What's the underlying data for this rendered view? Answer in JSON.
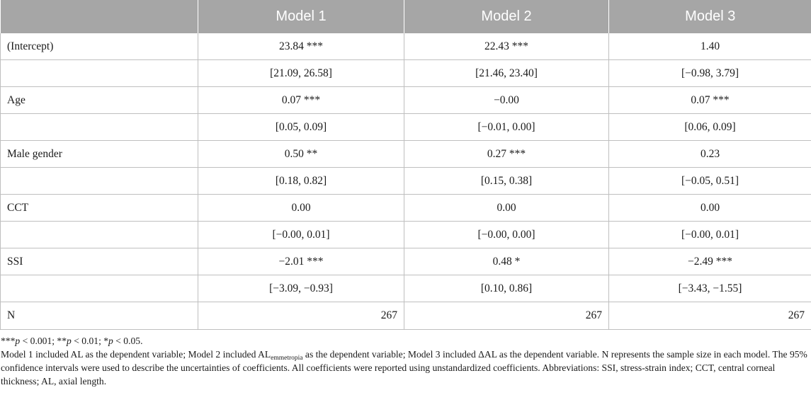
{
  "table": {
    "headers": [
      "",
      "Model 1",
      "Model 2",
      "Model 3"
    ],
    "rows": [
      [
        "(Intercept)",
        "23.84 ***",
        "22.43 ***",
        "1.40"
      ],
      [
        "",
        "[21.09, 26.58]",
        "[21.46, 23.40]",
        "[−0.98, 3.79]"
      ],
      [
        "Age",
        "0.07 ***",
        "−0.00",
        "0.07 ***"
      ],
      [
        "",
        "[0.05, 0.09]",
        "[−0.01, 0.00]",
        "[0.06, 0.09]"
      ],
      [
        "Male gender",
        "0.50 **",
        "0.27 ***",
        "0.23"
      ],
      [
        "",
        "[0.18, 0.82]",
        "[0.15, 0.38]",
        "[−0.05, 0.51]"
      ],
      [
        "CCT",
        "0.00",
        "0.00",
        "0.00"
      ],
      [
        "",
        "[−0.00, 0.01]",
        "[−0.00, 0.00]",
        "[−0.00, 0.01]"
      ],
      [
        "SSI",
        "−2.01 ***",
        "0.48 *",
        "−2.49 ***"
      ],
      [
        "",
        "[−3.09, −0.93]",
        "[0.10, 0.86]",
        "[−3.43, −1.55]"
      ],
      [
        "N",
        "267",
        "267",
        "267"
      ]
    ]
  },
  "notes": {
    "significance": {
      "s3": "***",
      "p1": "p",
      "t1": " < 0.001; ",
      "s2": "**",
      "p2": "p",
      "t2": " < 0.01; ",
      "s1": "*",
      "p3": "p",
      "t3": " < 0.05."
    },
    "description": {
      "part1": "Model 1 included AL as the dependent variable; Model 2 included AL",
      "subscript": "emmetropia",
      "part2": " as the dependent variable; Model 3 included ΔAL as the dependent variable. N represents the sample size in each model. The 95% confidence intervals were used to describe the uncertainties of coefficients. All coefficients were reported using unstandardized coefficients. Abbreviations: SSI, stress-strain index; CCT, central corneal thickness; AL, axial length."
    }
  }
}
